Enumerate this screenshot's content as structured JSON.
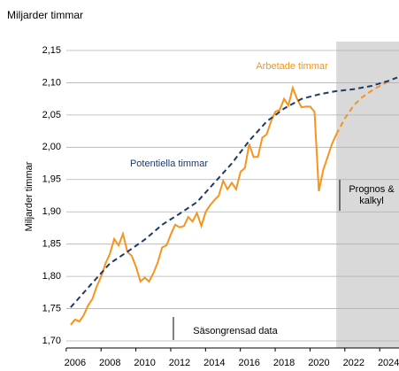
{
  "chart_data": {
    "type": "line",
    "title": "Miljarder timmar",
    "ylabel": "Miljarder timmar",
    "xlim": [
      2005.5,
      2024.6
    ],
    "ylim": [
      1.7,
      2.15
    ],
    "xticks": [
      2006,
      2008,
      2010,
      2012,
      2014,
      2016,
      2018,
      2020,
      2022,
      2024
    ],
    "yticks": [
      {
        "value": 1.7,
        "label": "1,70"
      },
      {
        "value": 1.75,
        "label": "1,75"
      },
      {
        "value": 1.8,
        "label": "1,80"
      },
      {
        "value": 1.85,
        "label": "1,85"
      },
      {
        "value": 1.9,
        "label": "1,90"
      },
      {
        "value": 1.95,
        "label": "1,95"
      },
      {
        "value": 2.0,
        "label": "2,00"
      },
      {
        "value": 2.05,
        "label": "2,05"
      },
      {
        "value": 2.1,
        "label": "2,10"
      },
      {
        "value": 2.15,
        "label": "2,15"
      }
    ],
    "grid": true,
    "forecast_start": 2021.0,
    "forecast_color": "#d9d9d9",
    "series": [
      {
        "name": "Arbetade timmar",
        "color": "#f7941d",
        "dashed": false,
        "x": [
          2005.75,
          2006.0,
          2006.25,
          2006.5,
          2006.75,
          2007.0,
          2007.25,
          2007.5,
          2007.75,
          2008.0,
          2008.25,
          2008.5,
          2008.75,
          2009.0,
          2009.25,
          2009.5,
          2009.75,
          2010.0,
          2010.25,
          2010.5,
          2010.75,
          2011.0,
          2011.25,
          2011.5,
          2011.75,
          2012.0,
          2012.25,
          2012.5,
          2012.75,
          2013.0,
          2013.25,
          2013.5,
          2013.75,
          2014.0,
          2014.25,
          2014.5,
          2014.75,
          2015.0,
          2015.25,
          2015.5,
          2015.75,
          2016.0,
          2016.25,
          2016.5,
          2016.75,
          2017.0,
          2017.25,
          2017.5,
          2017.75,
          2018.0,
          2018.25,
          2018.5,
          2018.75,
          2019.0,
          2019.25,
          2019.5,
          2019.75,
          2020.0,
          2020.25,
          2020.5,
          2020.75,
          2021.0
        ],
        "values": [
          1.725,
          1.733,
          1.73,
          1.74,
          1.755,
          1.765,
          1.785,
          1.8,
          1.82,
          1.835,
          1.858,
          1.848,
          1.866,
          1.838,
          1.832,
          1.815,
          1.792,
          1.798,
          1.792,
          1.805,
          1.822,
          1.845,
          1.848,
          1.865,
          1.88,
          1.876,
          1.878,
          1.892,
          1.885,
          1.898,
          1.878,
          1.9,
          1.91,
          1.918,
          1.925,
          1.948,
          1.935,
          1.945,
          1.935,
          1.962,
          1.968,
          2.005,
          1.985,
          1.985,
          2.015,
          2.02,
          2.04,
          2.055,
          2.058,
          2.075,
          2.065,
          2.092,
          2.075,
          2.062,
          2.063,
          2.063,
          2.055,
          1.932,
          1.965,
          1.985,
          2.005,
          2.02
        ],
        "forecast_x": [
          2021.0,
          2021.5,
          2022.0,
          2022.5,
          2023.0,
          2023.5,
          2024.0
        ],
        "forecast_values": [
          2.02,
          2.045,
          2.065,
          2.078,
          2.087,
          2.095,
          2.102
        ]
      },
      {
        "name": "Potentiella timmar",
        "color": "#1f3a68",
        "dashed": true,
        "x": [
          2005.75,
          2007,
          2008,
          2009,
          2010,
          2011,
          2012,
          2013,
          2014,
          2015,
          2016,
          2017,
          2018,
          2019,
          2020,
          2021,
          2022,
          2023,
          2024,
          2024.5
        ],
        "values": [
          1.752,
          1.79,
          1.82,
          1.838,
          1.857,
          1.88,
          1.897,
          1.915,
          1.945,
          1.975,
          2.01,
          2.04,
          2.06,
          2.075,
          2.082,
          2.087,
          2.09,
          2.095,
          2.103,
          2.108
        ]
      }
    ],
    "annotations": [
      "Prognos &",
      "kalkyl",
      "Säsongrensad data"
    ]
  }
}
